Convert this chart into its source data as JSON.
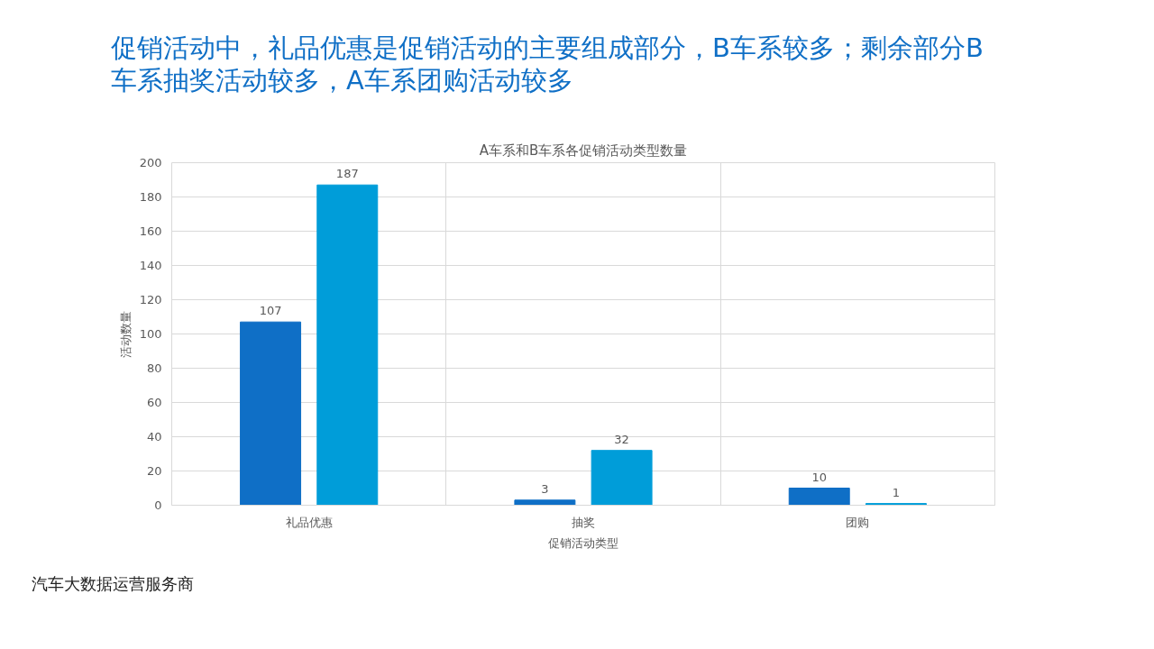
{
  "chart_data": {
    "type": "bar",
    "title": "促销活动中，礼品优惠是促销活动的主要组成部分，B车系较多；剩余部分B车系抽奖活动较多，A车系团购活动较多",
    "subtitle": "A车系和B车系各促销活动类型数量",
    "xlabel": "促销活动类型",
    "ylabel": "活动数量",
    "categories": [
      "礼品优惠",
      "抽奖",
      "团购"
    ],
    "series": [
      {
        "color": "#0f6fc6",
        "values": [
          107,
          3,
          10
        ]
      },
      {
        "color": "#009dd9",
        "values": [
          187,
          32,
          1
        ]
      }
    ],
    "ylim": [
      0,
      200
    ],
    "yticks": [
      0,
      20,
      40,
      60,
      80,
      100,
      120,
      140,
      160,
      180,
      200
    ],
    "grid": true,
    "data_labels": true,
    "annotations": [
      "汽车大数据运营服务商"
    ]
  }
}
